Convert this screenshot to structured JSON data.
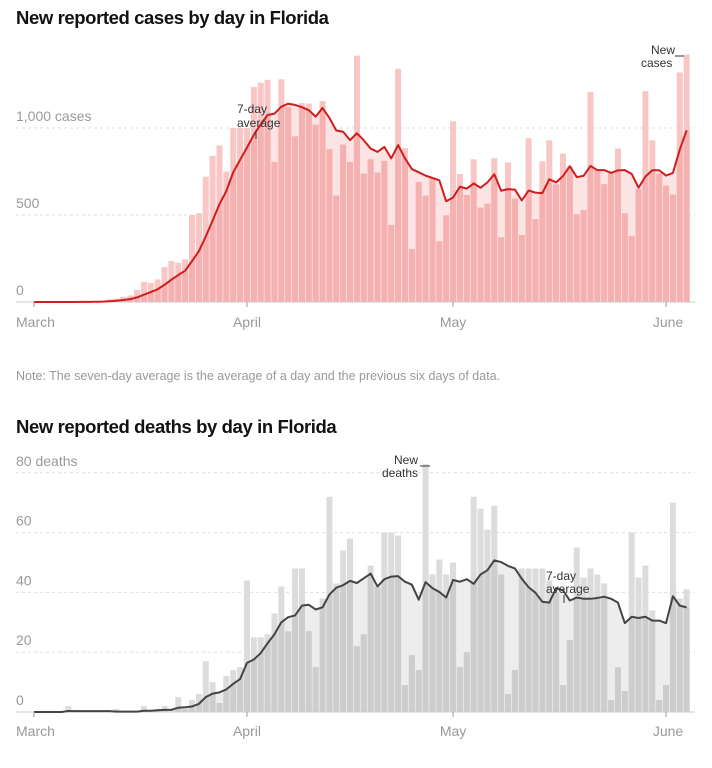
{
  "chart_data": [
    {
      "type": "bar",
      "title": "New reported cases by day in Florida",
      "x_start": "2020-03-01",
      "x_end": "2020-06-04",
      "x_tick_labels": [
        "March",
        "April",
        "May",
        "June"
      ],
      "y_tick_labels": [
        "0",
        "500",
        "1,000 cases"
      ],
      "y_ticks": [
        0,
        500,
        1000
      ],
      "ylim": [
        0,
        1450
      ],
      "grid": true,
      "series": [
        {
          "name": "New cases",
          "type": "bar",
          "values": [
            0,
            0,
            0,
            0,
            0,
            0,
            1,
            2,
            2,
            4,
            8,
            15,
            20,
            30,
            38,
            70,
            115,
            110,
            130,
            200,
            235,
            225,
            245,
            500,
            510,
            720,
            840,
            900,
            750,
            1000,
            1000,
            1000,
            1235,
            1260,
            1277,
            805,
            1280,
            1120,
            952,
            1143,
            1140,
            1019,
            1155,
            878,
            611,
            905,
            805,
            1416,
            738,
            820,
            744,
            811,
            443,
            1340,
            885,
            305,
            689,
            611,
            716,
            349,
            498,
            1038,
            735,
            615,
            820,
            542,
            565,
            826,
            372,
            802,
            595,
            385,
            941,
            477,
            809,
            929,
            676,
            853,
            777,
            504,
            529,
            1206,
            761,
            677,
            738,
            882,
            510,
            380,
            649,
            1212,
            929,
            738,
            668,
            618,
            1319,
            1422
          ]
        },
        {
          "name": "7-day average",
          "type": "line",
          "method": "trailing 7-day mean of new cases"
        }
      ],
      "annotations": {
        "bars": "New cases",
        "line": "7-day average"
      },
      "colors": {
        "bar": "#f8c6c5",
        "bar_under_avg": "#f4b1b0",
        "avg_area": "#fbe4e3",
        "line": "#cf1e1e"
      }
    },
    {
      "type": "bar",
      "title": "New reported deaths by day in Florida",
      "x_start": "2020-03-01",
      "x_end": "2020-06-04",
      "x_tick_labels": [
        "March",
        "April",
        "May",
        "June"
      ],
      "y_tick_labels": [
        "0",
        "20",
        "40",
        "60",
        "80 deaths"
      ],
      "y_ticks": [
        0,
        20,
        40,
        60,
        80
      ],
      "ylim": [
        0,
        85
      ],
      "grid": true,
      "series": [
        {
          "name": "New deaths",
          "type": "bar",
          "values": [
            0,
            0,
            0,
            0,
            0,
            2,
            0,
            0,
            0,
            0,
            0,
            0,
            1,
            0,
            0,
            0,
            2,
            0,
            1,
            2,
            0,
            5,
            1,
            4,
            6,
            17,
            10,
            3,
            12,
            14,
            15,
            44,
            25,
            25,
            26,
            33,
            42,
            27,
            48,
            48,
            27,
            15,
            38,
            72,
            43,
            54,
            58,
            22,
            26,
            49,
            42,
            60,
            60,
            59,
            9,
            19,
            14,
            83,
            46,
            51,
            46,
            50,
            15,
            20,
            72,
            68,
            61,
            69,
            46,
            6,
            14,
            48,
            48,
            48,
            48,
            44,
            40,
            9,
            24,
            55,
            45,
            48,
            46,
            43,
            4,
            15,
            7,
            60,
            45,
            49,
            34,
            4,
            9,
            70,
            38,
            41
          ]
        },
        {
          "name": "7-day average",
          "type": "line",
          "method": "trailing 7-day mean of new deaths"
        }
      ],
      "annotations": {
        "bars": "New deaths",
        "line": "7-day average"
      },
      "colors": {
        "bar": "#dcdcdc",
        "bar_under_avg": "#cdcdcd",
        "avg_area": "#ededed",
        "line": "#444444"
      }
    }
  ],
  "labels": {
    "cases_new_line1": "New",
    "cases_new_line2": "cases",
    "cases_avg_line1": "7-day",
    "cases_avg_line2": "average",
    "deaths_new_line1": "New",
    "deaths_new_line2": "deaths",
    "deaths_avg_line1": "7-day",
    "deaths_avg_line2": "average"
  },
  "note": "Note: The seven-day average is the average of a day and the previous six days of data."
}
